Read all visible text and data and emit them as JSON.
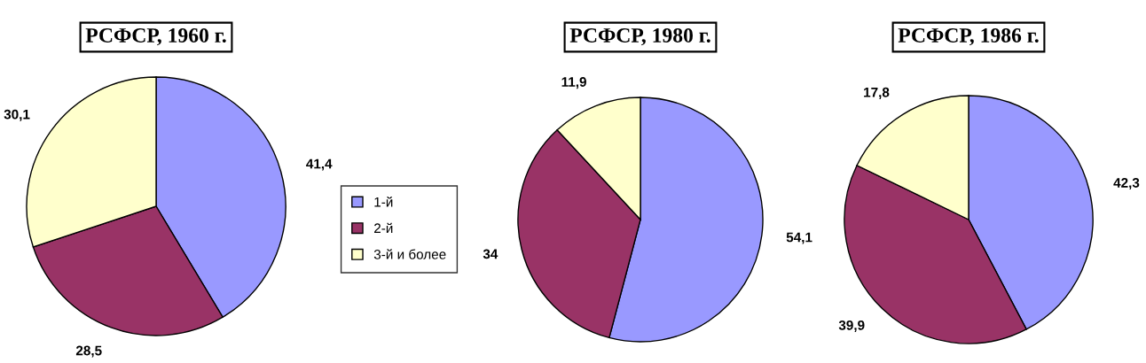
{
  "chart_data": [
    {
      "type": "pie",
      "title": "РСФСР, 1960 г.",
      "categories": [
        "1-й",
        "2-й",
        "3-й и более"
      ],
      "values": [
        41.4,
        28.5,
        30.1
      ],
      "colors": [
        "#9999ff",
        "#993366",
        "#ffffcc"
      ],
      "value_labels": [
        "41,4",
        "28,5",
        "30,1"
      ],
      "legend": "right"
    },
    {
      "type": "pie",
      "title": "РСФСР, 1980 г.",
      "values": [
        54.1,
        34,
        11.9
      ],
      "colors": [
        "#9999ff",
        "#993366",
        "#ffffcc"
      ],
      "value_labels": [
        "54,1",
        "34",
        "11,9"
      ]
    },
    {
      "type": "pie",
      "title": "РСФСР, 1986 г.",
      "values": [
        42.3,
        39.9,
        17.8
      ],
      "colors": [
        "#9999ff",
        "#993366",
        "#ffffcc"
      ],
      "value_labels": [
        "42,3",
        "39,9",
        "17,8"
      ]
    }
  ]
}
